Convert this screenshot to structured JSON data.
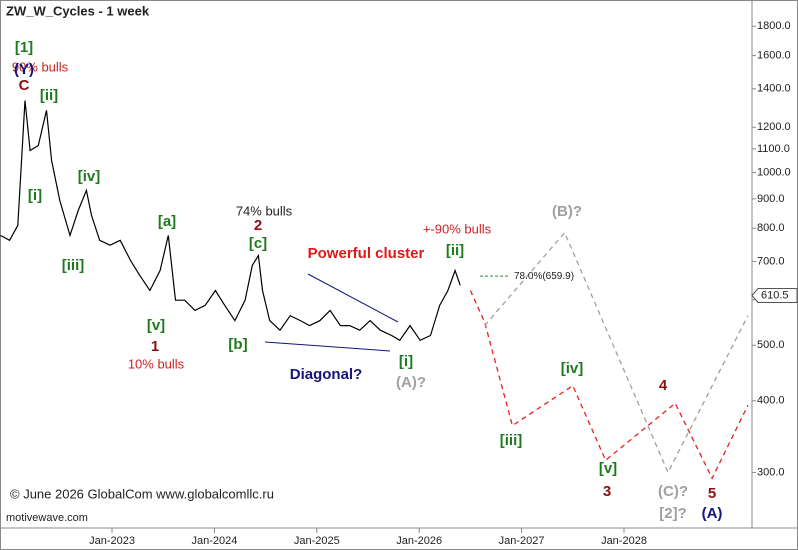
{
  "chart_data": {
    "type": "line",
    "title": "ZW_W_Cycles - 1 week",
    "copyright": "© June 2026 GlobalCom www.globalcomllc.ru",
    "watermark": "motivewave.com",
    "log_scale": true,
    "xlim": [
      2021.906,
      2029.25
    ],
    "ylim": [
      240,
      2000
    ],
    "xticks": [
      {
        "value": 2023,
        "label": "Jan-2023"
      },
      {
        "value": 2024,
        "label": "Jan-2024"
      },
      {
        "value": 2025,
        "label": "Jan-2025"
      },
      {
        "value": 2026,
        "label": "Jan-2026"
      },
      {
        "value": 2027,
        "label": "Jan-2027"
      },
      {
        "value": 2028,
        "label": "Jan-2028"
      }
    ],
    "yticks": [
      {
        "value": 300,
        "label": "300.0"
      },
      {
        "value": 400,
        "label": "400.0"
      },
      {
        "value": 500,
        "label": "500.0"
      },
      {
        "value": 600,
        "label": "600.0"
      },
      {
        "value": 700,
        "label": "700.0"
      },
      {
        "value": 800,
        "label": "800.0"
      },
      {
        "value": 900,
        "label": "900.0"
      },
      {
        "value": 1000,
        "label": "1000.0"
      },
      {
        "value": 1100,
        "label": "1100.0"
      },
      {
        "value": 1200,
        "label": "1200.0"
      },
      {
        "value": 1400,
        "label": "1400.0"
      },
      {
        "value": 1600,
        "label": "1600.0"
      },
      {
        "value": 1800,
        "label": "1800.0"
      }
    ],
    "last_price": 610.5,
    "fib_level": {
      "label": "78.0%(659.9)",
      "value": 659.9,
      "color": "#2e8b2e"
    },
    "series": [
      {
        "color": "#000000",
        "dashed": false,
        "x": [
          2021.91,
          2022.0,
          2022.08,
          2022.15,
          2022.2,
          2022.28,
          2022.36,
          2022.41,
          2022.49,
          2022.59,
          2022.67,
          2022.75,
          2022.8,
          2022.88,
          2022.98,
          2023.08,
          2023.18,
          2023.27,
          2023.37,
          2023.47,
          2023.55,
          2023.62,
          2023.71,
          2023.81,
          2023.91,
          2024.01,
          2024.1,
          2024.2,
          2024.3,
          2024.37,
          2024.43,
          2024.47,
          2024.54,
          2024.64,
          2024.74,
          2024.84,
          2024.93,
          2025.03,
          2025.13,
          2025.23,
          2025.32,
          2025.42,
          2025.52,
          2025.62,
          2025.73,
          2025.81,
          2025.91,
          2026.01,
          2026.11,
          2026.2,
          2026.28,
          2026.35,
          2026.4
        ],
        "values": [
          777,
          762,
          809,
          1336,
          1093,
          1115,
          1284,
          1050,
          894,
          777,
          859,
          931,
          842,
          762,
          747,
          762,
          703,
          662,
          623,
          675,
          777,
          599,
          599,
          575,
          587,
          623,
          587,
          552,
          599,
          689,
          717,
          623,
          552,
          531,
          563,
          552,
          541,
          552,
          575,
          541,
          541,
          531,
          552,
          531,
          520,
          510,
          541,
          510,
          520,
          587,
          623,
          675,
          636
        ]
      },
      {
        "color": "#e8201e",
        "dashed": true,
        "x": [
          2026.5,
          2026.64,
          2026.91,
          2027.5,
          2027.82,
          2028.5,
          2028.86,
          2029.21
        ],
        "values": [
          623,
          548,
          362,
          425,
          315,
          396,
          293,
          393
        ]
      },
      {
        "color": "#a0a0a0",
        "dashed": true,
        "x": [
          2026.64,
          2027.42,
          2028.43,
          2029.21
        ],
        "values": [
          541,
          786,
          300,
          563
        ]
      }
    ],
    "annotations": [
      {
        "text": "[1]",
        "color": "#1e7a1e"
      },
      {
        "text": "90% bulls",
        "color": "#cc2222"
      },
      {
        "text": "(Y)",
        "color": "#14147a"
      },
      {
        "text": "C",
        "color": "#8b1010"
      },
      {
        "text": "[ii]",
        "color": "#1e7a1e"
      },
      {
        "text": "[i]",
        "color": "#1e7a1e"
      },
      {
        "text": "[iv]",
        "color": "#1e7a1e"
      },
      {
        "text": "[iii]",
        "color": "#1e7a1e"
      },
      {
        "text": "[a]",
        "color": "#1e7a1e"
      },
      {
        "text": "74% bulls",
        "color": "#222222"
      },
      {
        "text": "2",
        "color": "#8b1010"
      },
      {
        "text": "[c]",
        "color": "#1e7a1e"
      },
      {
        "text": "Powerful cluster",
        "color": "#dd1a1a"
      },
      {
        "text": "+-90% bulls",
        "color": "#cc2222"
      },
      {
        "text": "[ii]",
        "color": "#1e7a1e"
      },
      {
        "text": "[b]",
        "color": "#1e7a1e"
      },
      {
        "text": "[v]",
        "color": "#1e7a1e"
      },
      {
        "text": "1",
        "color": "#8b1010"
      },
      {
        "text": "10% bulls",
        "color": "#cc2222"
      },
      {
        "text": "Diagonal?",
        "color": "#14147a"
      },
      {
        "text": "[i]",
        "color": "#1e7a1e"
      },
      {
        "text": "(A)?",
        "color": "#a0a0a0"
      },
      {
        "text": "(B)?",
        "color": "#a0a0a0"
      },
      {
        "text": "[iv]",
        "color": "#1e7a1e"
      },
      {
        "text": "4",
        "color": "#8b1010"
      },
      {
        "text": "[iii]",
        "color": "#1e7a1e"
      },
      {
        "text": "[v]",
        "color": "#1e7a1e"
      },
      {
        "text": "3",
        "color": "#8b1010"
      },
      {
        "text": "(C)?",
        "color": "#a0a0a0"
      },
      {
        "text": "[2]?",
        "color": "#a0a0a0"
      },
      {
        "text": "5",
        "color": "#8b1010"
      },
      {
        "text": "(A)",
        "color": "#14147a"
      }
    ]
  }
}
